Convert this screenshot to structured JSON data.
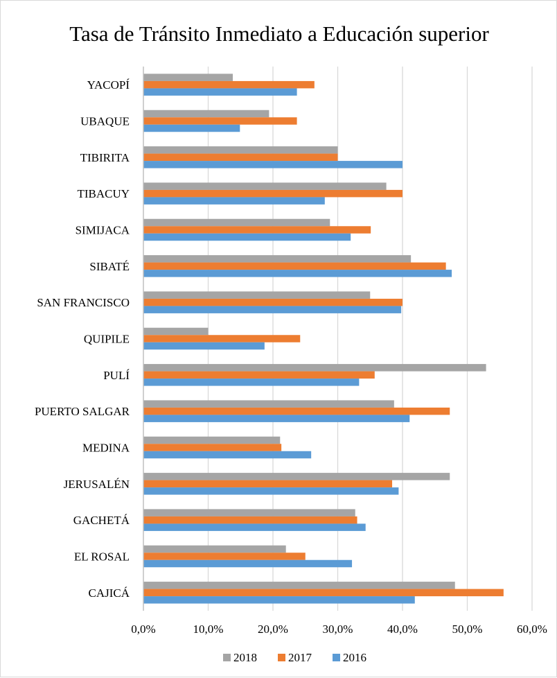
{
  "chart_data": {
    "type": "bar",
    "orientation": "horizontal",
    "title": "Tasa de Tránsito Inmediato a Educación superior",
    "xlabel": "",
    "ylabel": "",
    "xlim": [
      0,
      0.6
    ],
    "x_ticks": [
      "0,0%",
      "10,0%",
      "20,0%",
      "30,0%",
      "40,0%",
      "50,0%",
      "60,0%"
    ],
    "grid": true,
    "legend_position": "bottom",
    "categories": [
      "CAJICÁ",
      "EL ROSAL",
      "GACHETÁ",
      "JERUSALÉN",
      "MEDINA",
      "PUERTO SALGAR",
      "PULÍ",
      "QUIPILE",
      "SAN FRANCISCO",
      "SIBATÉ",
      "SIMIJACA",
      "TIBACUY",
      "TIBIRITA",
      "UBAQUE",
      "YACOPÍ"
    ],
    "series": [
      {
        "name": "2016",
        "color": "#5b9bd5",
        "values": [
          0.419,
          0.322,
          0.343,
          0.394,
          0.259,
          0.411,
          0.333,
          0.187,
          0.398,
          0.476,
          0.32,
          0.28,
          0.4,
          0.149,
          0.237
        ]
      },
      {
        "name": "2017",
        "color": "#ed7d31",
        "values": [
          0.556,
          0.25,
          0.33,
          0.384,
          0.213,
          0.473,
          0.357,
          0.242,
          0.4,
          0.467,
          0.351,
          0.4,
          0.3,
          0.237,
          0.264
        ]
      },
      {
        "name": "2018",
        "color": "#a5a5a5",
        "values": [
          0.481,
          0.22,
          0.327,
          0.473,
          0.211,
          0.387,
          0.529,
          0.1,
          0.35,
          0.413,
          0.288,
          0.375,
          0.3,
          0.194,
          0.138
        ]
      }
    ],
    "legend_order": [
      "2018",
      "2017",
      "2016"
    ]
  },
  "colors": {
    "grid": "#d9d9d9",
    "axis": "#bfbfbf",
    "border": "#d9d9d9"
  }
}
